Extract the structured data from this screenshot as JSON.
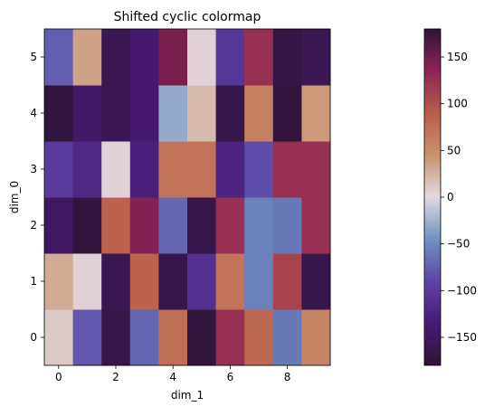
{
  "chart_data": {
    "type": "heatmap",
    "title": "Shifted cyclic colormap",
    "xlabel": "dim_1",
    "ylabel": "dim_0",
    "colormap": "twilight_shifted",
    "x_ticks": [
      "0",
      "2",
      "4",
      "6",
      "8"
    ],
    "y_ticks": [
      "0",
      "1",
      "2",
      "3",
      "4",
      "5"
    ],
    "colorbar": {
      "range": [
        -180,
        180
      ],
      "ticks": [
        "150",
        "100",
        "50",
        "0",
        "−50",
        "−100",
        "−150"
      ],
      "tick_values": [
        150,
        100,
        50,
        0,
        -50,
        -100,
        -150
      ]
    },
    "values": [
      [
        10,
        -80,
        -165,
        -70,
        75,
        -175,
        125,
        80,
        -60,
        55
      ],
      [
        30,
        5,
        -160,
        85,
        -165,
        -110,
        70,
        -55,
        110,
        -165
      ],
      [
        -150,
        -175,
        85,
        140,
        -70,
        -165,
        125,
        -55,
        -60,
        125
      ],
      [
        -100,
        -120,
        5,
        -130,
        70,
        70,
        -125,
        -85,
        125,
        125
      ],
      [
        -175,
        -145,
        -160,
        -140,
        -30,
        20,
        -165,
        60,
        -175,
        40
      ],
      [
        -75,
        35,
        -160,
        -140,
        145,
        5,
        -105,
        125,
        -170,
        -160
      ]
    ]
  }
}
